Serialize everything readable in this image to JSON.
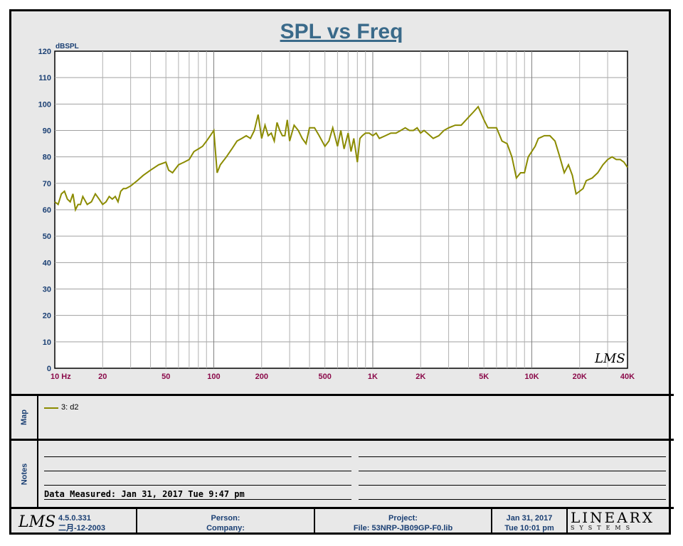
{
  "chart_data": {
    "type": "line",
    "title": "SPL vs Freq",
    "ylabel": "dBSPL",
    "xlabel": "",
    "xscale": "log",
    "xlim": [
      10,
      40000
    ],
    "ylim": [
      0,
      120
    ],
    "grid": true,
    "y_ticks": [
      0,
      10,
      20,
      30,
      40,
      50,
      60,
      70,
      80,
      90,
      100,
      110,
      120
    ],
    "y_tick_labels": [
      "0",
      "10",
      "20",
      "30",
      "40",
      "50",
      "60",
      "70",
      "80",
      "90",
      "100",
      "110",
      "120"
    ],
    "x_ticks": [
      10,
      20,
      50,
      100,
      200,
      500,
      1000,
      2000,
      5000,
      10000,
      20000,
      40000
    ],
    "x_tick_labels": [
      "10  Hz",
      "20",
      "50",
      "100",
      "200",
      "500",
      "1K",
      "2K",
      "5K",
      "10K",
      "20K",
      "40K"
    ],
    "line_color": "#8b8b00",
    "series": [
      {
        "name": "3: d2",
        "x": [
          10,
          10.5,
          11,
          11.5,
          12,
          12.5,
          13,
          13.5,
          14,
          14.5,
          15,
          16,
          17,
          18,
          19,
          20,
          21,
          22,
          23,
          24,
          25,
          26,
          27,
          28,
          30,
          33,
          36,
          40,
          45,
          50,
          52,
          55,
          60,
          65,
          70,
          75,
          80,
          85,
          90,
          95,
          100,
          105,
          110,
          120,
          130,
          140,
          150,
          160,
          170,
          180,
          190,
          200,
          210,
          220,
          230,
          240,
          250,
          260,
          270,
          280,
          290,
          300,
          320,
          340,
          360,
          380,
          400,
          430,
          460,
          500,
          530,
          560,
          600,
          630,
          660,
          700,
          730,
          760,
          800,
          830,
          860,
          900,
          950,
          1000,
          1050,
          1100,
          1200,
          1300,
          1400,
          1500,
          1600,
          1700,
          1800,
          1900,
          2000,
          2100,
          2200,
          2400,
          2600,
          2800,
          3000,
          3300,
          3600,
          4000,
          4300,
          4600,
          5000,
          5300,
          5600,
          6000,
          6500,
          7000,
          7500,
          8000,
          8500,
          9000,
          9500,
          10000,
          10500,
          11000,
          12000,
          13000,
          14000,
          15000,
          16000,
          17000,
          18000,
          19000,
          20000,
          21000,
          22000,
          24000,
          26000,
          28000,
          30000,
          32000,
          34000,
          36000,
          38000,
          40000
        ],
        "y": [
          63,
          62,
          66,
          67,
          64,
          63,
          66,
          60,
          62,
          62,
          65,
          62,
          63,
          66,
          64,
          62,
          63,
          65,
          64,
          65,
          63,
          67,
          68,
          68,
          69,
          71,
          73,
          75,
          77,
          78,
          75,
          74,
          77,
          78,
          79,
          82,
          83,
          84,
          86,
          88,
          90,
          74,
          77,
          80,
          83,
          86,
          87,
          88,
          87,
          90,
          96,
          87,
          92,
          88,
          89,
          86,
          93,
          90,
          88,
          88,
          94,
          86,
          92,
          90,
          87,
          85,
          91,
          91,
          88,
          84,
          86,
          91,
          84,
          90,
          83,
          89,
          82,
          87,
          78,
          87,
          88,
          89,
          89,
          88,
          89,
          87,
          88,
          89,
          89,
          90,
          91,
          90,
          90,
          91,
          89,
          90,
          89,
          87,
          88,
          90,
          91,
          92,
          92,
          95,
          97,
          99,
          94,
          91,
          91,
          91,
          86,
          85,
          80,
          72,
          74,
          74,
          80,
          82,
          84,
          87,
          88,
          88,
          86,
          80,
          74,
          77,
          73,
          66,
          67,
          68,
          71,
          72,
          74,
          77,
          79,
          80,
          79,
          79,
          78,
          76
        ]
      }
    ]
  },
  "legend": {
    "items": [
      {
        "label": "3: d2"
      }
    ]
  },
  "panels": {
    "map_label": "Map",
    "notes_label": "Notes"
  },
  "notes": {
    "measured": "Data Measured: Jan 31, 2017  Tue  9:47 pm"
  },
  "footer": {
    "logo": "LMS",
    "version": "4.5.0.331",
    "build_date": "二月-12-2003",
    "person_label": "Person:",
    "company_label": "Company:",
    "project_label": "Project:",
    "file_label": "File: 53NRP-JB09GP-F0.lib",
    "date": "Jan 31, 2017",
    "time": "Tue 10:01 pm",
    "brand_main": "LINEARX",
    "brand_sub": "SYSTEMS"
  },
  "plot_logo": "LMS"
}
